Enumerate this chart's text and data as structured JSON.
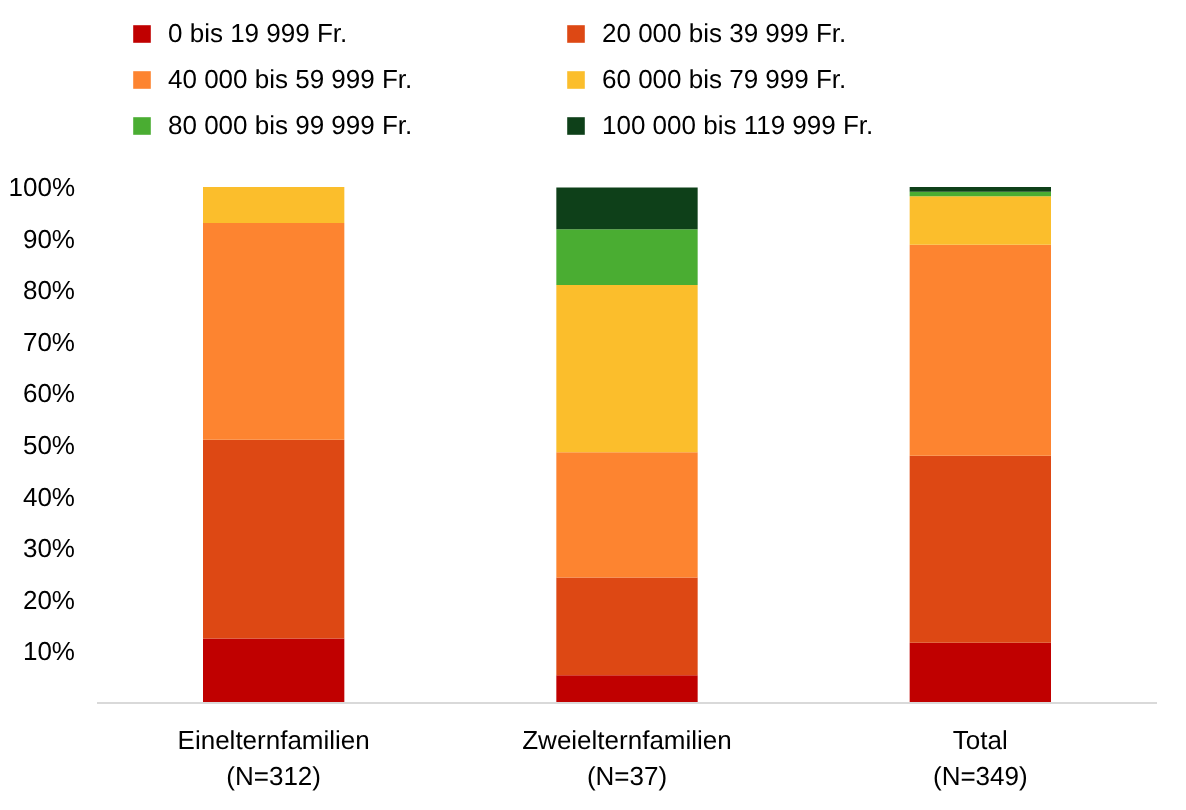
{
  "chart_data": {
    "type": "bar",
    "stacked": true,
    "categories": [
      "Einelternfamilien\n(N=312)",
      "Zweielternfamilien\n(N=37)",
      "Total\n(N=349)"
    ],
    "series": [
      {
        "name": "0 bis 19 999 Fr.",
        "color": "#c00000",
        "values": [
          12.5,
          5.4,
          11.7
        ]
      },
      {
        "name": "20 000 bis 39 999 Fr.",
        "color": "#dd4814",
        "values": [
          38.5,
          18.9,
          36.2
        ]
      },
      {
        "name": "40 000 bis 59 999 Fr.",
        "color": "#fd8430",
        "values": [
          42,
          24.3,
          40.9
        ]
      },
      {
        "name": "60 000 bis 79 999 Fr.",
        "color": "#fbbe2c",
        "values": [
          7,
          32.4,
          9.4
        ]
      },
      {
        "name": "80 000 bis 99 999 Fr.",
        "color": "#4aad32",
        "values": [
          0,
          10.8,
          0.9
        ]
      },
      {
        "name": "100 000 bis 119 999 Fr.",
        "color": "#0e4019",
        "values": [
          0,
          8.1,
          0.9
        ]
      }
    ],
    "ylim": [
      0,
      100
    ],
    "yticks": [
      {
        "value": 10,
        "label": "10%"
      },
      {
        "value": 20,
        "label": "20%"
      },
      {
        "value": 30,
        "label": "30%"
      },
      {
        "value": 40,
        "label": "40%"
      },
      {
        "value": 50,
        "label": "50%"
      },
      {
        "value": 60,
        "label": "60%"
      },
      {
        "value": 70,
        "label": "70%"
      },
      {
        "value": 80,
        "label": "80%"
      },
      {
        "value": 90,
        "label": "90%"
      },
      {
        "value": 100,
        "label": "100%"
      }
    ],
    "grid": false,
    "legend": "top"
  }
}
